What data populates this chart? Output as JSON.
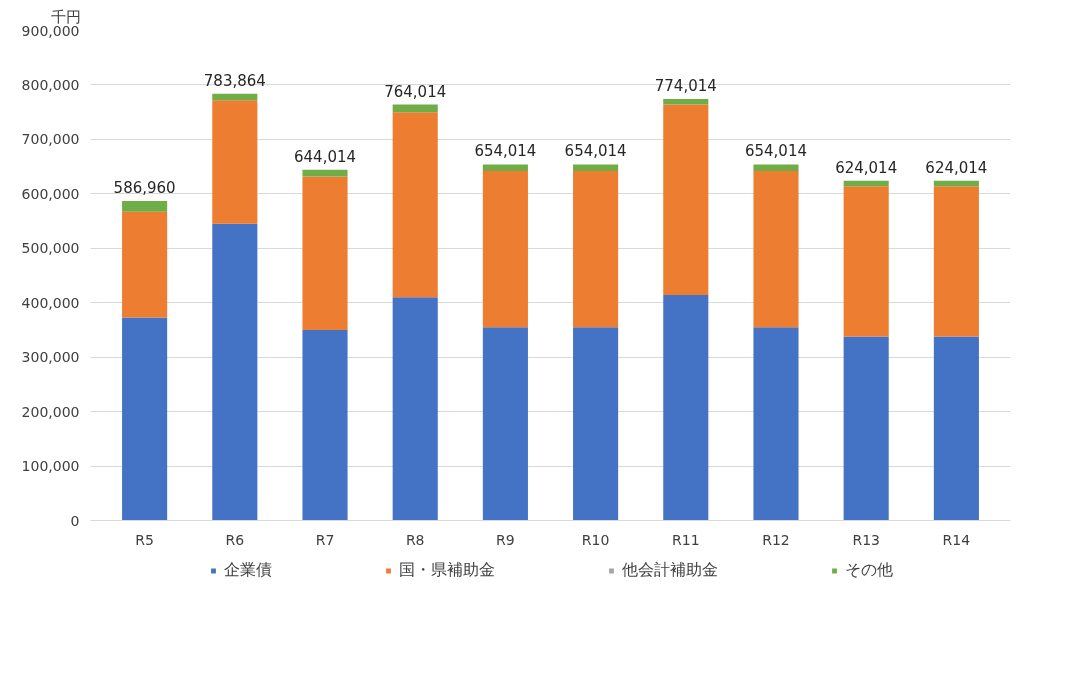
{
  "chart_data": {
    "type": "bar",
    "stacked": true,
    "ylabel": "千円",
    "categories": [
      "R5",
      "R6",
      "R7",
      "R8",
      "R9",
      "R10",
      "R11",
      "R12",
      "R13",
      "R14"
    ],
    "series": [
      {
        "name": "企業債",
        "color": "#4472c4",
        "values": [
          373000,
          545000,
          350000,
          410000,
          355000,
          355000,
          414000,
          355000,
          338000,
          338000
        ]
      },
      {
        "name": "国・県補助金",
        "color": "#ed7d31",
        "values": [
          194000,
          227000,
          282000,
          340000,
          287000,
          287000,
          350000,
          287000,
          276000,
          276000
        ]
      },
      {
        "name": "他会計補助金",
        "color": "#a5a5a5",
        "values": [
          0,
          0,
          0,
          0,
          0,
          0,
          0,
          0,
          0,
          0
        ]
      },
      {
        "name": "その他",
        "color": "#70ad47",
        "values": [
          19960,
          11864,
          12014,
          14014,
          12014,
          12014,
          10014,
          12014,
          10014,
          10014
        ]
      }
    ],
    "totals": [
      "586,960",
      "783,864",
      "644,014",
      "764,014",
      "654,014",
      "654,014",
      "774,014",
      "654,014",
      "624,014",
      "624,014"
    ],
    "ylim": [
      0,
      900000
    ],
    "yticks": [
      {
        "value": 0,
        "label": "0"
      },
      {
        "value": 100000,
        "label": "100,000"
      },
      {
        "value": 200000,
        "label": "200,000"
      },
      {
        "value": 300000,
        "label": "300,000"
      },
      {
        "value": 400000,
        "label": "400,000"
      },
      {
        "value": 500000,
        "label": "500,000"
      },
      {
        "value": 600000,
        "label": "600,000"
      },
      {
        "value": 700000,
        "label": "700,000"
      },
      {
        "value": 800000,
        "label": "800,000"
      },
      {
        "value": 900000,
        "label": "900,000"
      }
    ],
    "grid": "y",
    "legend": "bottom"
  }
}
